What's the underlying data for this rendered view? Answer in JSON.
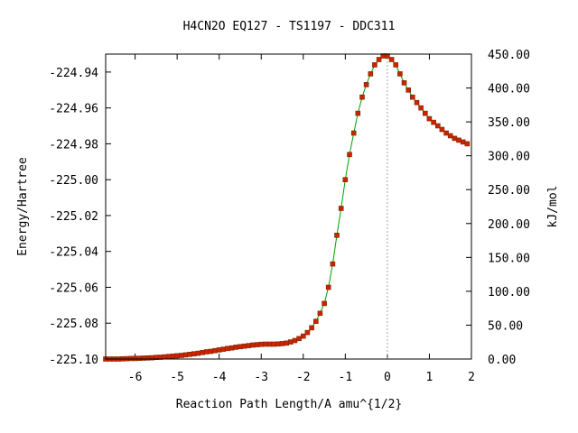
{
  "chart_data": {
    "type": "line",
    "title": "H4CN2O   EQ127 - TS1197 - DDC311",
    "xlabel": "Reaction Path Length/A amu^{1/2}",
    "ylabel": "Energy/Hartree",
    "y2label": "kJ/mol",
    "xlim": [
      -6.7,
      2.0
    ],
    "ylim": [
      -225.1,
      -224.93
    ],
    "y2lim": [
      0.0,
      450.0
    ],
    "xticks": [
      -6,
      -5,
      -4,
      -3,
      -2,
      -1,
      0,
      1,
      2
    ],
    "xtick_labels": [
      "-6",
      "-5",
      "-4",
      "-3",
      "-2",
      "-1",
      "0",
      "1",
      "2"
    ],
    "yticks": [
      -225.1,
      -225.08,
      -225.06,
      -225.04,
      -225.02,
      -225.0,
      -224.98,
      -224.96,
      -224.94
    ],
    "ytick_labels": [
      "-225.10",
      "-225.08",
      "-225.06",
      "-225.04",
      "-225.02",
      "-225.00",
      "-224.98",
      "-224.96",
      "-224.94"
    ],
    "y2ticks": [
      0,
      50,
      100,
      150,
      200,
      250,
      300,
      350,
      400,
      450
    ],
    "y2tick_labels": [
      "0.00",
      "50.00",
      "100.00",
      "150.00",
      "200.00",
      "250.00",
      "300.00",
      "350.00",
      "400.00",
      "450.00"
    ],
    "ts_marker_x": 0,
    "grid": false,
    "colors": {
      "line": "#00a000",
      "marker": "#cc2200",
      "marker_edge": "#7a2a00"
    },
    "series": [
      {
        "x": [
          -6.7,
          -6.6,
          -6.5,
          -6.4,
          -6.3,
          -6.2,
          -6.1,
          -6.0,
          -5.9,
          -5.8,
          -5.7,
          -5.6,
          -5.5,
          -5.4,
          -5.3,
          -5.2,
          -5.1,
          -5.0,
          -4.9,
          -4.8,
          -4.7,
          -4.6,
          -4.5,
          -4.4,
          -4.3,
          -4.2,
          -4.1,
          -4.0,
          -3.9,
          -3.8,
          -3.7,
          -3.6,
          -3.5,
          -3.4,
          -3.3,
          -3.2,
          -3.1,
          -3.0,
          -2.9,
          -2.8,
          -2.7,
          -2.6,
          -2.5,
          -2.4,
          -2.3,
          -2.2,
          -2.1,
          -2.0,
          -1.9,
          -1.8,
          -1.7,
          -1.6,
          -1.5,
          -1.4,
          -1.3,
          -1.2,
          -1.1,
          -1.0,
          -0.9,
          -0.8,
          -0.7,
          -0.6,
          -0.5,
          -0.4,
          -0.3,
          -0.2,
          -0.1,
          0.0,
          0.1,
          0.2,
          0.3,
          0.4,
          0.5,
          0.6,
          0.7,
          0.8,
          0.9,
          1.0,
          1.1,
          1.2,
          1.3,
          1.4,
          1.5,
          1.6,
          1.7,
          1.8,
          1.9
        ],
        "y": [
          -225.1,
          -225.1,
          -225.1,
          -225.1,
          -225.0999,
          -225.0998,
          -225.0997,
          -225.0997,
          -225.0996,
          -225.0995,
          -225.0994,
          -225.0993,
          -225.0991,
          -225.099,
          -225.0988,
          -225.0986,
          -225.0984,
          -225.0982,
          -225.098,
          -225.0977,
          -225.0974,
          -225.0971,
          -225.0968,
          -225.0964,
          -225.096,
          -225.0957,
          -225.0953,
          -225.0949,
          -225.0945,
          -225.0941,
          -225.0938,
          -225.0934,
          -225.0931,
          -225.0928,
          -225.0925,
          -225.0922,
          -225.092,
          -225.0918,
          -225.0917,
          -225.0917,
          -225.0917,
          -225.0916,
          -225.0914,
          -225.0911,
          -225.0905,
          -225.0897,
          -225.0886,
          -225.0872,
          -225.0852,
          -225.0826,
          -225.079,
          -225.0745,
          -225.069,
          -225.06,
          -225.047,
          -225.031,
          -225.016,
          -225.0,
          -224.986,
          -224.974,
          -224.963,
          -224.954,
          -224.947,
          -224.941,
          -224.936,
          -224.933,
          -224.931,
          -224.931,
          -224.933,
          -224.936,
          -224.941,
          -224.946,
          -224.95,
          -224.954,
          -224.957,
          -224.96,
          -224.963,
          -224.966,
          -224.968,
          -224.97,
          -224.972,
          -224.974,
          -224.9755,
          -224.977,
          -224.978,
          -224.979,
          -224.98
        ]
      }
    ]
  }
}
